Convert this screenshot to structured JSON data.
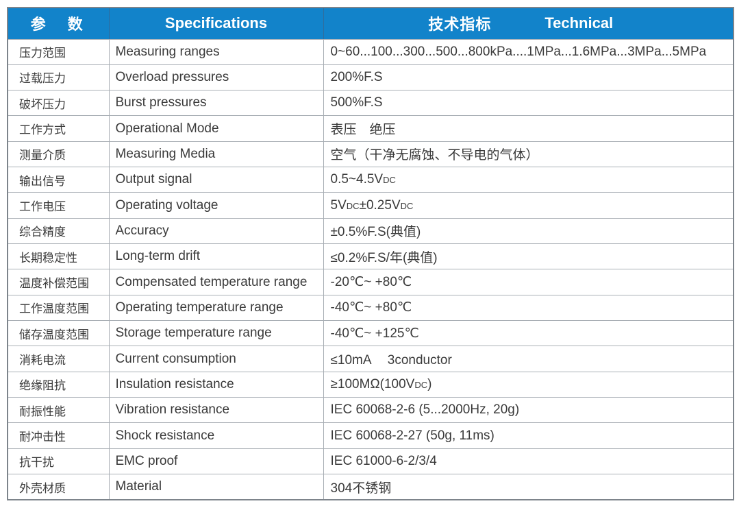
{
  "header": {
    "param_zh": "参　数",
    "spec_en": "Specifications",
    "tech_zh": "技术指标",
    "tech_en": "Technical"
  },
  "colors": {
    "header_bg": "#1283CA",
    "header_text": "#FFFFFF",
    "header_sep": "#2F6D9E",
    "body_text": "#3A3A3A",
    "grid_line": "#A9AFB5",
    "outer_border": "#7D848B"
  },
  "rows": [
    {
      "param": "压力范围",
      "spec": "Measuring ranges",
      "value": [
        {
          "t": "0~60...100...300...500...800kPa....1MPa...1.6MPa...3MPa...5MPa"
        }
      ]
    },
    {
      "param": "过载压力",
      "spec": "Overload pressures",
      "value": [
        {
          "t": "200%F.S"
        }
      ]
    },
    {
      "param": "破坏压力",
      "spec": "Burst pressures",
      "value": [
        {
          "t": "500%F.S"
        }
      ]
    },
    {
      "param": "工作方式",
      "spec": "Operational Mode",
      "value": [
        {
          "t": "表压　绝压"
        }
      ]
    },
    {
      "param": "测量介质",
      "spec": "Measuring Media",
      "value": [
        {
          "t": "空气（干净无腐蚀、不导电的气体）"
        }
      ]
    },
    {
      "param": "输出信号",
      "spec": "Output signal",
      "value": [
        {
          "t": "0.5~4.5V"
        },
        {
          "t": "DC",
          "s": 1
        }
      ]
    },
    {
      "param": "工作电压",
      "spec": "Operating voltage",
      "value": [
        {
          "t": "5V"
        },
        {
          "t": "DC",
          "s": 1
        },
        {
          "t": "±0.25V"
        },
        {
          "t": "DC",
          "s": 1
        }
      ]
    },
    {
      "param": "综合精度",
      "spec": "Accuracy",
      "value": [
        {
          "t": "±0.5%F.S(典值)"
        }
      ]
    },
    {
      "param": "长期稳定性",
      "spec": "Long-term drift",
      "value": [
        {
          "t": "≤0.2%F.S/年(典值)"
        }
      ]
    },
    {
      "param": "温度补偿范围",
      "spec": "Compensated temperature range",
      "value": [
        {
          "t": "-20℃~ +80℃"
        }
      ]
    },
    {
      "param": "工作温度范围",
      "spec": "Operating temperature range",
      "value": [
        {
          "t": "-40℃~ +80℃"
        }
      ]
    },
    {
      "param": "储存温度范围",
      "spec": "Storage temperature range",
      "value": [
        {
          "t": "-40℃~ +125℃"
        }
      ]
    },
    {
      "param": "消耗电流",
      "spec": "Current consumption",
      "value": [
        {
          "t": "≤10mA　 3conductor"
        }
      ]
    },
    {
      "param": "绝缘阻抗",
      "spec": "Insulation resistance",
      "value": [
        {
          "t": "≥100MΩ(100V"
        },
        {
          "t": "DC",
          "s": 1
        },
        {
          "t": ")"
        }
      ]
    },
    {
      "param": "耐振性能",
      "spec": "Vibration resistance",
      "value": [
        {
          "t": "IEC 60068-2-6 (5...2000Hz, 20g)"
        }
      ]
    },
    {
      "param": "耐冲击性",
      "spec": "Shock resistance",
      "value": [
        {
          "t": "IEC 60068-2-27 (50g, 11ms)"
        }
      ]
    },
    {
      "param": "抗干扰",
      "spec": "EMC proof",
      "value": [
        {
          "t": "IEC 61000-6-2/3/4"
        }
      ]
    },
    {
      "param": "外壳材质",
      "spec": "Material",
      "value": [
        {
          "t": "304不锈钢"
        }
      ]
    }
  ]
}
